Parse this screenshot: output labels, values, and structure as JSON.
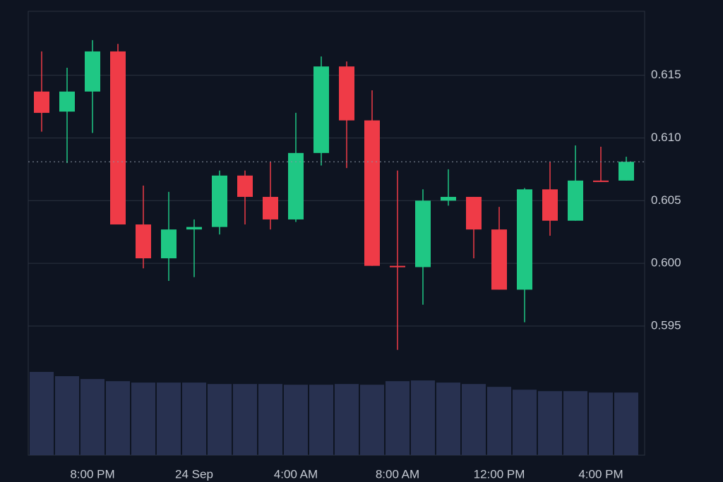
{
  "chart_data": {
    "type": "candlestick",
    "categories": [
      null,
      null,
      "8:00 PM",
      null,
      null,
      null,
      "24 Sep",
      null,
      null,
      null,
      "4:00 AM",
      null,
      null,
      null,
      "8:00 AM",
      null,
      null,
      null,
      "12:00 PM",
      null,
      null,
      null,
      "4:00 PM",
      null
    ],
    "open": [
      0.6137,
      0.6121,
      0.6137,
      0.6169,
      0.6031,
      0.6004,
      0.6027,
      0.6029,
      0.607,
      0.6053,
      0.6035,
      0.6088,
      0.6157,
      0.6114,
      0.5998,
      0.5997,
      0.605,
      0.6053,
      0.6027,
      0.5979,
      0.6059,
      0.6034,
      0.6066,
      0.6066
    ],
    "high": [
      0.6169,
      0.6156,
      0.6178,
      0.6175,
      0.6062,
      0.6057,
      0.6035,
      0.6074,
      0.6074,
      0.6081,
      0.612,
      0.6165,
      0.6161,
      0.6138,
      0.6074,
      0.6059,
      0.6075,
      0.6053,
      0.6045,
      0.606,
      0.6081,
      0.6094,
      0.6093,
      0.6085
    ],
    "low": [
      0.6105,
      0.608,
      0.6104,
      0.6031,
      0.5996,
      0.5986,
      0.5989,
      0.6023,
      0.6031,
      0.6027,
      0.6033,
      0.6078,
      0.6076,
      0.5998,
      0.5931,
      0.5967,
      0.6046,
      0.6004,
      0.5979,
      0.5953,
      0.6022,
      0.6034,
      0.6065,
      0.6066
    ],
    "close": [
      0.612,
      0.6137,
      0.6169,
      0.6031,
      0.6004,
      0.6027,
      0.6029,
      0.607,
      0.6053,
      0.6035,
      0.6088,
      0.6157,
      0.6114,
      0.5998,
      0.5997,
      0.605,
      0.6053,
      0.6027,
      0.5979,
      0.6059,
      0.6034,
      0.6066,
      0.6065,
      0.6081
    ],
    "volume": [
      117,
      111,
      107,
      104,
      102,
      102,
      102,
      100,
      100,
      100,
      99,
      99,
      100,
      99,
      104,
      105,
      102,
      100,
      96,
      92,
      90,
      90,
      88,
      88
    ],
    "up_color": "#1fc784",
    "down_color": "#ef3b47",
    "volume_color": "#283150",
    "last_price": 0.6081,
    "ylim": [
      0.5847,
      0.6201
    ],
    "yticks": [
      0.595,
      {
        "value": 0.6,
        "label": "0.600"
      },
      0.605,
      {
        "value": 0.61,
        "label": "0.610"
      },
      0.615
    ],
    "grid": true
  }
}
